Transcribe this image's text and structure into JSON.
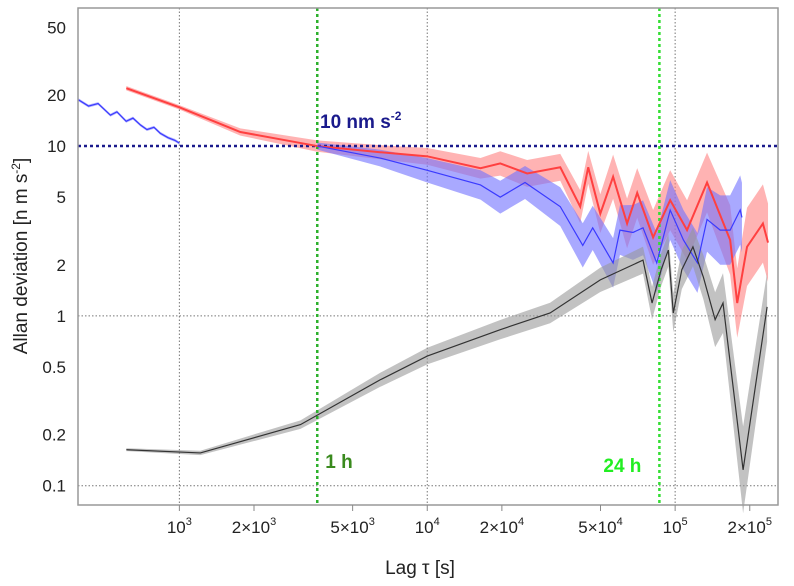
{
  "chart_data": {
    "type": "line",
    "title": "",
    "xlabel": "Lag τ [s]",
    "ylabel": "Allan deviation [n m s-2]",
    "ylabel_parts": {
      "main": "Allan deviation [n m s",
      "exp": "-2",
      "end": "]"
    },
    "xscale": "log",
    "yscale": "log",
    "xlim": [
      390,
      260000
    ],
    "ylim": [
      0.077,
      65
    ],
    "grid": "major decades, dotted",
    "x_ticks": [
      {
        "value": 1000,
        "base": "10",
        "exp": "3"
      },
      {
        "value": 2000,
        "base": "2×10",
        "exp": "3"
      },
      {
        "value": 5000,
        "base": "5×10",
        "exp": "3"
      },
      {
        "value": 10000,
        "base": "10",
        "exp": "4"
      },
      {
        "value": 20000,
        "base": "2×10",
        "exp": "4"
      },
      {
        "value": 50000,
        "base": "5×10",
        "exp": "4"
      },
      {
        "value": 100000,
        "base": "10",
        "exp": "5"
      },
      {
        "value": 200000,
        "base": "2×10",
        "exp": "5"
      }
    ],
    "y_ticks": [
      {
        "value": 50,
        "label": "50"
      },
      {
        "value": 20,
        "label": "20"
      },
      {
        "value": 10,
        "label": "10"
      },
      {
        "value": 5,
        "label": "5"
      },
      {
        "value": 2,
        "label": "2"
      },
      {
        "value": 1,
        "label": "1"
      },
      {
        "value": 0.5,
        "label": "0.5"
      },
      {
        "value": 0.2,
        "label": "0.2"
      },
      {
        "value": 0.1,
        "label": "0.1"
      }
    ],
    "reference_lines": [
      {
        "axis": "y",
        "value": 10,
        "color": "#1a1a8c",
        "label": "10 nm s",
        "label_exp": "-2"
      },
      {
        "axis": "x",
        "value": 3600,
        "color": "#2bb02b",
        "label": "1 h",
        "label_color": "#3a8a1e"
      },
      {
        "axis": "x",
        "value": 86400,
        "color": "#33dd33",
        "label": "24 h",
        "label_color": "#22ee22"
      }
    ],
    "series": [
      {
        "name": "red",
        "color": "#ff4040",
        "band_color": "#ff8080",
        "x": [
          611,
          1000,
          1762,
          3597,
          6450,
          10000,
          16400,
          19700,
          25300,
          34400,
          41400,
          44600,
          49900,
          56200,
          64000,
          70300,
          81500,
          95500,
          111700,
          134500,
          166700,
          178000,
          195000,
          226000,
          237000
        ],
        "y": [
          21.9,
          16.9,
          12.1,
          10,
          9.2,
          8.7,
          7.4,
          7.9,
          6.9,
          7.5,
          4.4,
          7.5,
          4.0,
          6.6,
          3.5,
          5.3,
          2.9,
          4.8,
          3.2,
          6.1,
          2.8,
          1.19,
          2.55,
          3.5,
          2.7
        ],
        "band_factor": [
          1.03,
          1.03,
          1.05,
          1.08,
          1.1,
          1.12,
          1.15,
          1.18,
          1.2,
          1.2,
          1.25,
          1.25,
          1.3,
          1.35,
          1.4,
          1.4,
          1.45,
          1.5,
          1.5,
          1.5,
          1.6,
          1.6,
          1.7,
          1.7,
          1.7
        ]
      },
      {
        "name": "blue (short lags)",
        "color": "#3a3aff",
        "band_color": "#8080ff",
        "x": [
          392,
          430,
          470,
          527,
          560,
          610,
          650,
          697,
          740,
          790,
          837,
          900,
          960,
          1000
        ],
        "y": [
          18.7,
          17.2,
          17.8,
          15.2,
          15.9,
          14.0,
          14.6,
          13.3,
          12.5,
          12.9,
          11.9,
          11.2,
          10.8,
          10.4
        ],
        "band_factor": [
          1.02,
          1.02,
          1.02,
          1.02,
          1.02,
          1.02,
          1.02,
          1.02,
          1.02,
          1.02,
          1.02,
          1.02,
          1.02,
          1.02
        ]
      },
      {
        "name": "blue",
        "color": "#3a3aff",
        "band_color": "#7070ff",
        "x": [
          3600,
          6450,
          10000,
          16400,
          19700,
          24800,
          34400,
          42400,
          46500,
          56200,
          59900,
          67600,
          74200,
          84300,
          95500,
          108000,
          123000,
          134500,
          152000,
          166700,
          183000,
          186000
        ],
        "y": [
          10,
          8.5,
          7.2,
          5.9,
          5.0,
          6.1,
          4.4,
          2.6,
          3.3,
          2.05,
          3.2,
          3.1,
          3.3,
          2.05,
          4.2,
          2.8,
          2.05,
          3.7,
          3.2,
          3.2,
          4.2,
          3.8
        ],
        "band_factor": [
          1.05,
          1.12,
          1.18,
          1.22,
          1.25,
          1.25,
          1.3,
          1.35,
          1.35,
          1.4,
          1.4,
          1.45,
          1.45,
          1.5,
          1.5,
          1.5,
          1.5,
          1.55,
          1.6,
          1.6,
          1.6,
          1.6
        ]
      },
      {
        "name": "black",
        "color": "#333333",
        "band_color": "#9a9a9a",
        "x": [
          611,
          1215,
          3080,
          6450,
          10000,
          19700,
          31300,
          49900,
          74200,
          80700,
          87800,
          93900,
          98300,
          106400,
          118000,
          130000,
          145000,
          156000,
          188000,
          235000
        ],
        "y": [
          0.163,
          0.156,
          0.229,
          0.42,
          0.58,
          0.83,
          1.04,
          1.63,
          2.13,
          1.19,
          1.87,
          2.44,
          1.04,
          1.87,
          2.55,
          1.69,
          0.95,
          1.19,
          0.124,
          1.13
        ],
        "band_factor": [
          1.02,
          1.03,
          1.06,
          1.1,
          1.12,
          1.14,
          1.15,
          1.18,
          1.2,
          1.25,
          1.25,
          1.25,
          1.3,
          1.3,
          1.3,
          1.35,
          1.45,
          1.5,
          1.8,
          1.6
        ]
      }
    ]
  }
}
